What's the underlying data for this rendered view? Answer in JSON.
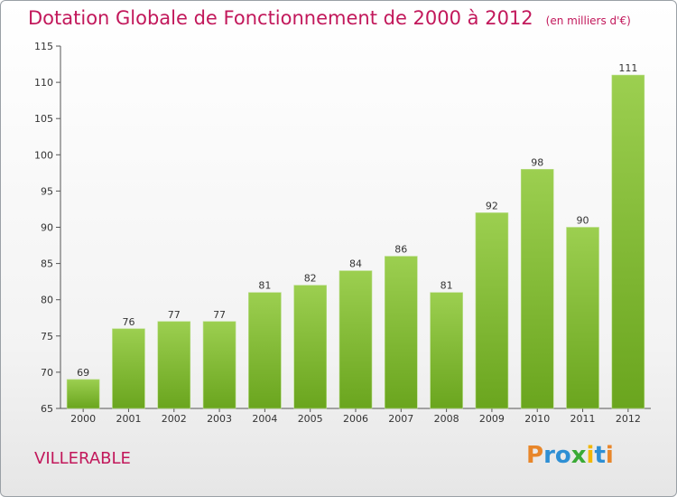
{
  "title": "Dotation Globale de Fonctionnement de 2000 à 2012",
  "unit_note": "(en milliers d'€)",
  "commune": "VILLERABLE",
  "logo": {
    "letters": [
      "P",
      "r",
      "o",
      "x",
      "i",
      "t",
      "i"
    ],
    "colors": [
      "#e8862a",
      "#2e8fd4",
      "#2e8fd4",
      "#3aaa35",
      "#f2b705",
      "#2e8fd4",
      "#e8862a"
    ]
  },
  "colors": {
    "title": "#c2185b",
    "bar_top": "#9ccf50",
    "bar_bottom": "#6aa51e"
  },
  "chart_data": {
    "type": "bar",
    "categories": [
      "2000",
      "2001",
      "2002",
      "2003",
      "2004",
      "2005",
      "2006",
      "2007",
      "2008",
      "2009",
      "2010",
      "2011",
      "2012"
    ],
    "values": [
      69,
      76,
      77,
      77,
      81,
      82,
      84,
      86,
      81,
      92,
      98,
      90,
      111
    ],
    "ylim": [
      65,
      115
    ],
    "yticks": [
      65,
      70,
      75,
      80,
      85,
      90,
      95,
      100,
      105,
      110,
      115
    ],
    "grid": false
  }
}
